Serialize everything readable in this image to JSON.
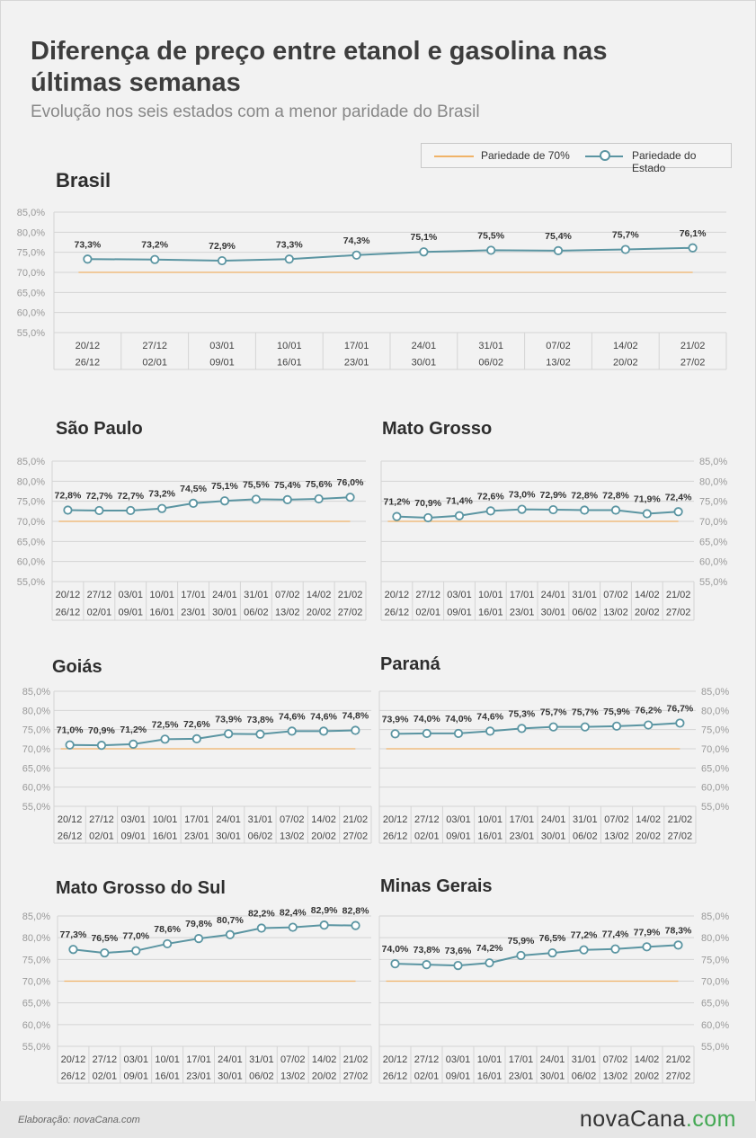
{
  "title": "Diferença de preço entre etanol e gasolina nas últimas semanas",
  "subtitle": "Evolução nos seis estados com a menor paridade do Brasil",
  "legend": {
    "items": [
      {
        "name": "Pariedade de 70%",
        "color": "#f0b368"
      },
      {
        "name": "Pariedade do Estado",
        "color": "#5b95a2"
      }
    ]
  },
  "footer": {
    "credit": "Elaboração: novaCana.com",
    "logo_main": "novaCana",
    "logo_suffix": ".com"
  },
  "colors": {
    "state_line": "#5b95a2",
    "threshold_line": "#f0b368",
    "grid": "#d4d4d4",
    "axis_text": "#9a9a9a"
  },
  "chart_data": [
    {
      "type": "line",
      "title": "Brasil",
      "y_labels": [
        "85,0%",
        "80,0%",
        "75,0%",
        "70,0%",
        "65,0%",
        "60,0%",
        "55,0%"
      ],
      "ylim": [
        55,
        85
      ],
      "threshold": 70,
      "y_axis_side": "left",
      "x_week_start": [
        "20/12",
        "27/12",
        "03/01",
        "10/01",
        "17/01",
        "24/01",
        "31/01",
        "07/02",
        "14/02",
        "21/02"
      ],
      "x_week_end": [
        "26/12",
        "02/01",
        "09/01",
        "16/01",
        "23/01",
        "30/01",
        "06/02",
        "13/02",
        "20/02",
        "27/02"
      ],
      "values": [
        73.3,
        73.2,
        72.9,
        73.3,
        74.3,
        75.1,
        75.5,
        75.4,
        75.7,
        76.1
      ],
      "value_labels": [
        "73,3%",
        "73,2%",
        "72,9%",
        "73,3%",
        "74,3%",
        "75,1%",
        "75,5%",
        "75,4%",
        "75,7%",
        "76,1%"
      ]
    },
    {
      "type": "line",
      "title": "São Paulo",
      "y_labels": [
        "85,0%",
        "80,0%",
        "75,0%",
        "70,0%",
        "65,0%",
        "60,0%",
        "55,0%"
      ],
      "ylim": [
        55,
        85
      ],
      "threshold": 70,
      "y_axis_side": "left",
      "x_week_start": [
        "20/12",
        "27/12",
        "03/01",
        "10/01",
        "17/01",
        "24/01",
        "31/01",
        "07/02",
        "14/02",
        "21/02"
      ],
      "x_week_end": [
        "26/12",
        "02/01",
        "09/01",
        "16/01",
        "23/01",
        "30/01",
        "06/02",
        "13/02",
        "20/02",
        "27/02"
      ],
      "values": [
        72.8,
        72.7,
        72.7,
        73.2,
        74.5,
        75.1,
        75.5,
        75.4,
        75.6,
        76.0
      ],
      "value_labels": [
        "72,8%",
        "72,7%",
        "72,7%",
        "73,2%",
        "74,5%",
        "75,1%",
        "75,5%",
        "75,4%",
        "75,6%",
        "76,0%"
      ]
    },
    {
      "type": "line",
      "title": "Mato Grosso",
      "y_labels": [
        "85,0%",
        "80,0%",
        "75,0%",
        "70,0%",
        "65,0%",
        "60,0%",
        "55,0%"
      ],
      "ylim": [
        55,
        85
      ],
      "threshold": 70,
      "y_axis_side": "right",
      "x_week_start": [
        "20/12",
        "27/12",
        "03/01",
        "10/01",
        "17/01",
        "24/01",
        "31/01",
        "07/02",
        "14/02",
        "21/02"
      ],
      "x_week_end": [
        "26/12",
        "02/01",
        "09/01",
        "16/01",
        "23/01",
        "30/01",
        "06/02",
        "13/02",
        "20/02",
        "27/02"
      ],
      "values": [
        71.2,
        70.9,
        71.4,
        72.6,
        73.0,
        72.9,
        72.8,
        72.8,
        71.9,
        72.4
      ],
      "value_labels": [
        "71,2%",
        "70,9%",
        "71,4%",
        "72,6%",
        "73,0%",
        "72,9%",
        "72,8%",
        "72,8%",
        "71,9%",
        "72,4%"
      ]
    },
    {
      "type": "line",
      "title": "Goiás",
      "y_labels": [
        "85,0%",
        "80,0%",
        "75,0%",
        "70,0%",
        "65,0%",
        "60,0%",
        "55,0%"
      ],
      "ylim": [
        55,
        85
      ],
      "threshold": 70,
      "y_axis_side": "left",
      "x_week_start": [
        "20/12",
        "27/12",
        "03/01",
        "10/01",
        "17/01",
        "24/01",
        "31/01",
        "07/02",
        "14/02",
        "21/02"
      ],
      "x_week_end": [
        "26/12",
        "02/01",
        "09/01",
        "16/01",
        "23/01",
        "30/01",
        "06/02",
        "13/02",
        "20/02",
        "27/02"
      ],
      "values": [
        71.0,
        70.9,
        71.2,
        72.5,
        72.6,
        73.9,
        73.8,
        74.6,
        74.6,
        74.8
      ],
      "value_labels": [
        "71,0%",
        "70,9%",
        "71,2%",
        "72,5%",
        "72,6%",
        "73,9%",
        "73,8%",
        "74,6%",
        "74,6%",
        "74,8%"
      ]
    },
    {
      "type": "line",
      "title": "Paraná",
      "y_labels": [
        "85,0%",
        "80,0%",
        "75,0%",
        "70,0%",
        "65,0%",
        "60,0%",
        "55,0%"
      ],
      "ylim": [
        55,
        85
      ],
      "threshold": 70,
      "y_axis_side": "right",
      "x_week_start": [
        "20/12",
        "27/12",
        "03/01",
        "10/01",
        "17/01",
        "24/01",
        "31/01",
        "07/02",
        "14/02",
        "21/02"
      ],
      "x_week_end": [
        "26/12",
        "02/01",
        "09/01",
        "16/01",
        "23/01",
        "30/01",
        "06/02",
        "13/02",
        "20/02",
        "27/02"
      ],
      "values": [
        73.9,
        74.0,
        74.0,
        74.6,
        75.3,
        75.7,
        75.7,
        75.9,
        76.2,
        76.7
      ],
      "value_labels": [
        "73,9%",
        "74,0%",
        "74,0%",
        "74,6%",
        "75,3%",
        "75,7%",
        "75,7%",
        "75,9%",
        "76,2%",
        "76,7%"
      ]
    },
    {
      "type": "line",
      "title": "Mato Grosso do Sul",
      "y_labels": [
        "85,0%",
        "80,0%",
        "75,0%",
        "70,0%",
        "65,0%",
        "60,0%",
        "55,0%"
      ],
      "ylim": [
        55,
        85
      ],
      "threshold": 70,
      "y_axis_side": "left",
      "x_week_start": [
        "20/12",
        "27/12",
        "03/01",
        "10/01",
        "17/01",
        "24/01",
        "31/01",
        "07/02",
        "14/02",
        "21/02"
      ],
      "x_week_end": [
        "26/12",
        "02/01",
        "09/01",
        "16/01",
        "23/01",
        "30/01",
        "06/02",
        "13/02",
        "20/02",
        "27/02"
      ],
      "values": [
        77.3,
        76.5,
        77.0,
        78.6,
        79.8,
        80.7,
        82.2,
        82.4,
        82.9,
        82.8
      ],
      "value_labels": [
        "77,3%",
        "76,5%",
        "77,0%",
        "78,6%",
        "79,8%",
        "80,7%",
        "82,2%",
        "82,4%",
        "82,9%",
        "82,8%"
      ]
    },
    {
      "type": "line",
      "title": "Minas Gerais",
      "y_labels": [
        "85,0%",
        "80,0%",
        "75,0%",
        "70,0%",
        "65,0%",
        "60,0%",
        "55,0%"
      ],
      "ylim": [
        55,
        85
      ],
      "threshold": 70,
      "y_axis_side": "right",
      "x_week_start": [
        "20/12",
        "27/12",
        "03/01",
        "10/01",
        "17/01",
        "24/01",
        "31/01",
        "07/02",
        "14/02",
        "21/02"
      ],
      "x_week_end": [
        "26/12",
        "02/01",
        "09/01",
        "16/01",
        "23/01",
        "30/01",
        "06/02",
        "13/02",
        "20/02",
        "27/02"
      ],
      "values": [
        74.0,
        73.8,
        73.6,
        74.2,
        75.9,
        76.5,
        77.2,
        77.4,
        77.9,
        78.3
      ],
      "value_labels": [
        "74,0%",
        "73,8%",
        "73,6%",
        "74,2%",
        "75,9%",
        "76,5%",
        "77,2%",
        "77,4%",
        "77,9%",
        "78,3%"
      ]
    }
  ]
}
